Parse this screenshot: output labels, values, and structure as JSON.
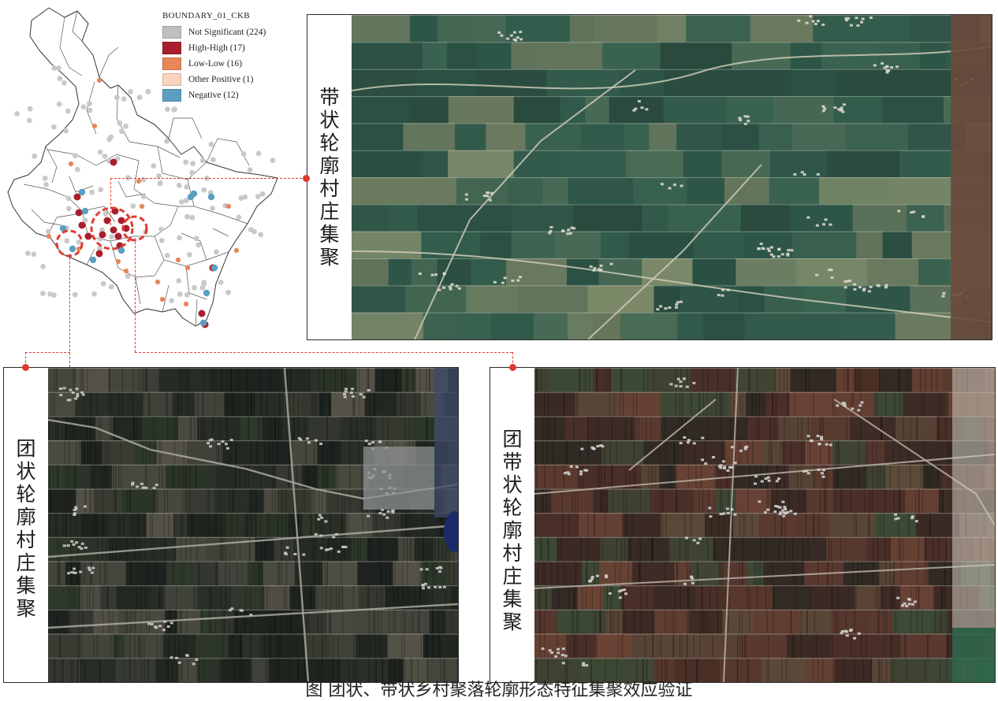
{
  "legend": {
    "title": "BOUNDARY_01_CKB",
    "items": [
      {
        "label": "Not Significant (224)",
        "color": "#bfbfbf"
      },
      {
        "label": "High-High (17)",
        "color": "#a91e2d"
      },
      {
        "label": "Low-Low (16)",
        "color": "#e7875a"
      },
      {
        "label": "Other Positive (1)",
        "color": "#f8d3bd"
      },
      {
        "label": "Negative (12)",
        "color": "#5a9fc2"
      }
    ]
  },
  "panels": {
    "top": {
      "label_chars": [
        "带",
        "状",
        "轮",
        "廓",
        "村",
        "庄",
        "集",
        "聚"
      ]
    },
    "bottom_left": {
      "label_chars": [
        "团",
        "状",
        "轮",
        "廓",
        "村",
        "庄",
        "集",
        "聚"
      ]
    },
    "bottom_right": {
      "label_chars": [
        "团",
        "带",
        "状",
        "轮",
        "廓",
        "村",
        "庄",
        "集",
        "聚"
      ]
    }
  },
  "caption": "图      团状、带状乡村聚落轮廓形态特征集聚效应验证",
  "colors": {
    "connector": "#e03a2f",
    "high_high": "#a91e2d",
    "low_low": "#e7875a",
    "negative": "#5a9fc2",
    "not_significant": "#c9c9c9"
  }
}
